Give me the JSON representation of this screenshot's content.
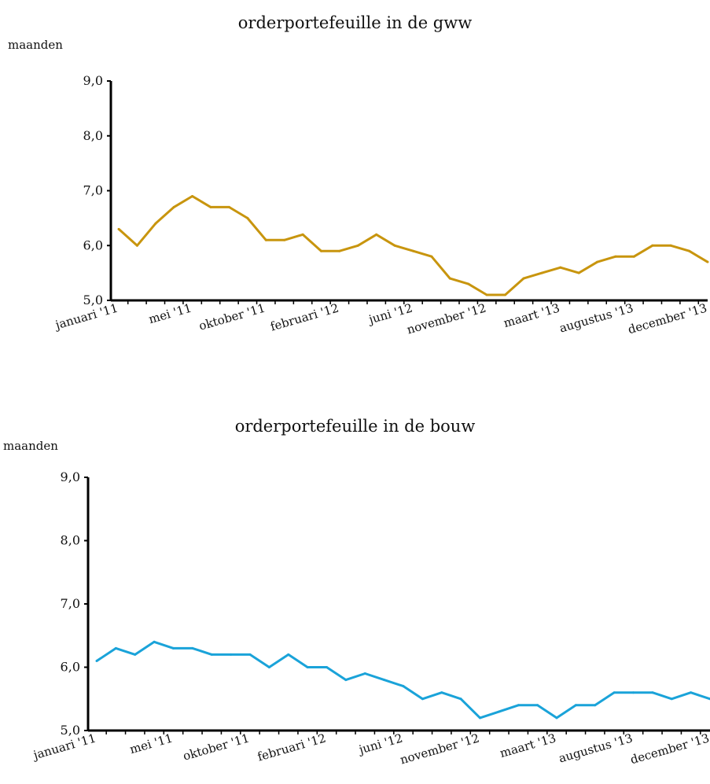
{
  "chart_data": [
    {
      "id": "gww",
      "type": "line",
      "title": "orderportefeuille in de gww",
      "ylabel": "maanden",
      "ylim": [
        5.0,
        9.0
      ],
      "yticks": [
        "5,0",
        "6,0",
        "7,0",
        "8,0",
        "9,0"
      ],
      "grid": false,
      "color": "#c8950e",
      "xtick_labels": [
        "januari '11",
        "mei '11",
        "oktober '11",
        "februari '12",
        "juni '12",
        "november '12",
        "maart '13",
        "augustus '13",
        "december '13"
      ],
      "series": [
        {
          "values": [
            6.3,
            6.0,
            6.4,
            6.7,
            6.9,
            6.7,
            6.7,
            6.5,
            6.1,
            6.1,
            6.2,
            5.9,
            5.9,
            6.0,
            6.2,
            6.0,
            5.9,
            5.8,
            5.4,
            5.3,
            5.1,
            5.1,
            5.4,
            5.5,
            5.6,
            5.5,
            5.7,
            5.8,
            5.8,
            6.0,
            6.0,
            5.9,
            5.7
          ]
        }
      ]
    },
    {
      "id": "bouw",
      "type": "line",
      "title": "orderportefeuille in de bouw",
      "ylabel": "maanden",
      "ylim": [
        5.0,
        9.0
      ],
      "yticks": [
        "5,0",
        "6,0",
        "7,0",
        "8,0",
        "9,0"
      ],
      "grid": false,
      "color": "#1aa3d9",
      "xtick_labels": [
        "januari '11",
        "mei '11",
        "oktober '11",
        "februari '12",
        "juni '12",
        "november '12",
        "maart '13",
        "augustus '13",
        "december '13"
      ],
      "series": [
        {
          "values": [
            6.1,
            6.3,
            6.2,
            6.4,
            6.3,
            6.3,
            6.2,
            6.2,
            6.2,
            6.0,
            6.2,
            6.0,
            6.0,
            5.8,
            5.9,
            5.8,
            5.7,
            5.5,
            5.6,
            5.5,
            5.2,
            5.3,
            5.4,
            5.4,
            5.2,
            5.4,
            5.4,
            5.6,
            5.6,
            5.6,
            5.5,
            5.6,
            5.5
          ]
        }
      ]
    }
  ]
}
